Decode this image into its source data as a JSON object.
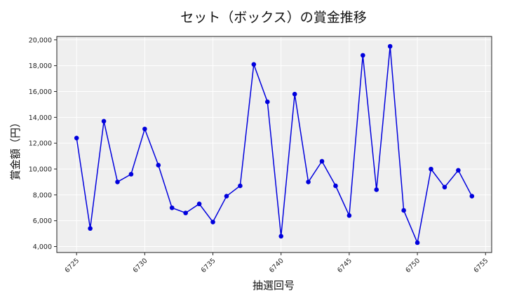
{
  "chart_data": {
    "type": "line",
    "title": "セット（ボックス）の賞金推移",
    "xlabel": "抽選回号",
    "ylabel": "賞金額（円）",
    "x": [
      6725,
      6726,
      6727,
      6728,
      6729,
      6730,
      6731,
      6732,
      6733,
      6734,
      6735,
      6736,
      6737,
      6738,
      6739,
      6740,
      6741,
      6742,
      6743,
      6744,
      6745,
      6746,
      6747,
      6748,
      6749,
      6750,
      6751,
      6752,
      6753,
      6754
    ],
    "series": [
      {
        "values": [
          12400,
          5400,
          13700,
          9000,
          9600,
          13100,
          10300,
          7000,
          6600,
          7300,
          5900,
          7900,
          8700,
          18100,
          15200,
          4800,
          15800,
          9000,
          10600,
          8700,
          6400,
          18800,
          8400,
          19500,
          6800,
          4300,
          10000,
          8600,
          9900,
          7900
        ]
      }
    ],
    "xlim": [
      6723.55,
      6755.45
    ],
    "ylim": [
      3540,
      20260
    ],
    "xticks": [
      6725,
      6730,
      6735,
      6740,
      6745,
      6750,
      6755
    ],
    "xtick_labels": [
      "6725",
      "6730",
      "6735",
      "6740",
      "6745",
      "6750",
      "6755"
    ],
    "yticks": [
      4000,
      6000,
      8000,
      10000,
      12000,
      14000,
      16000,
      18000,
      20000
    ],
    "ytick_labels": [
      "4,000",
      "6,000",
      "8,000",
      "10,000",
      "12,000",
      "14,000",
      "16,000",
      "18,000",
      "20,000"
    ],
    "grid": true,
    "colors": {
      "line": "#0000dd",
      "marker": "#0000dd",
      "plot_bg": "#efefef",
      "grid": "#ffffff"
    }
  }
}
